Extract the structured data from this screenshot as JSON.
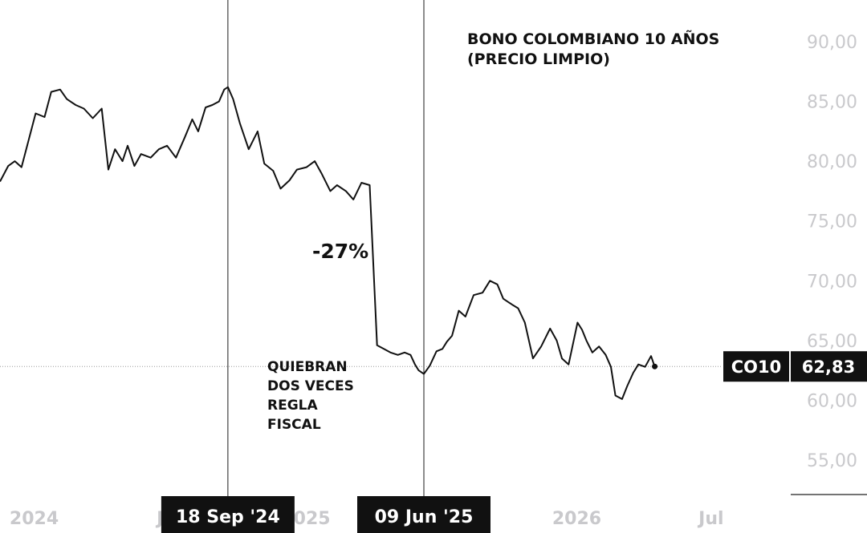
{
  "chart_data": {
    "type": "line",
    "title": "BONO COLOMBIANO 10 AÑOS",
    "subtitle": "(PRECIO LIMPIO)",
    "annotation_pct": "-27%",
    "annotation_note": [
      "QUIEBRAN",
      "DOS VECES",
      "REGLA",
      "FISCAL"
    ],
    "y_axis": {
      "position": "right",
      "ylim": [
        51.8,
        92.5
      ],
      "ticks": [
        55,
        60,
        65,
        70,
        75,
        80,
        85,
        90
      ],
      "tick_labels": [
        "55,00",
        "60,00",
        "65,00",
        "70,00",
        "75,00",
        "80,00",
        "85,00",
        "90,00"
      ]
    },
    "x_axis": {
      "labels": [
        {
          "text": "2024",
          "date": "2024-01-01"
        },
        {
          "text": "Jul",
          "date": "2024-07-01"
        },
        {
          "text": "2025",
          "date": "2025-01-01"
        },
        {
          "text": "Jul",
          "date": "2025-07-01"
        },
        {
          "text": "2026",
          "date": "2026-01-01"
        },
        {
          "text": "Jul",
          "date": "2026-07-01"
        }
      ]
    },
    "markers": [
      {
        "label": "18 Sep '24",
        "date": "2024-09-18"
      },
      {
        "label": "09 Jun '25",
        "date": "2025-06-09"
      }
    ],
    "last_value": {
      "ticker": "CO10",
      "value": 62.83,
      "label": "62,83"
    },
    "grid": false,
    "legend": "none",
    "series": [
      {
        "x": [
          "2023-11-16",
          "2023-11-27",
          "2023-12-06",
          "2023-12-15",
          "2024-01-03",
          "2024-01-15",
          "2024-01-24",
          "2024-02-05",
          "2024-02-14",
          "2024-02-26",
          "2024-03-08",
          "2024-03-20",
          "2024-04-01",
          "2024-04-10",
          "2024-04-19",
          "2024-04-29",
          "2024-05-06",
          "2024-05-15",
          "2024-05-24",
          "2024-06-06",
          "2024-06-17",
          "2024-06-28",
          "2024-07-10",
          "2024-07-22",
          "2024-08-01",
          "2024-08-09",
          "2024-08-19",
          "2024-08-28",
          "2024-09-06",
          "2024-09-13",
          "2024-09-18",
          "2024-09-25",
          "2024-10-04",
          "2024-10-16",
          "2024-10-28",
          "2024-11-06",
          "2024-11-18",
          "2024-11-28",
          "2024-12-10",
          "2024-12-20",
          "2025-01-02",
          "2025-01-13",
          "2025-01-22",
          "2025-02-03",
          "2025-02-12",
          "2025-02-24",
          "2025-03-06",
          "2025-03-17",
          "2025-03-28",
          "2025-04-07",
          "2025-04-16",
          "2025-04-25",
          "2025-05-05",
          "2025-05-14",
          "2025-05-22",
          "2025-05-28",
          "2025-06-02",
          "2025-06-09",
          "2025-06-17",
          "2025-06-26",
          "2025-07-04",
          "2025-07-10",
          "2025-07-17",
          "2025-07-26",
          "2025-08-04",
          "2025-08-15",
          "2025-08-27",
          "2025-09-06",
          "2025-09-16",
          "2025-09-24",
          "2025-10-06",
          "2025-10-14",
          "2025-10-23",
          "2025-11-03",
          "2025-11-14",
          "2025-11-26",
          "2025-12-05",
          "2025-12-12",
          "2025-12-21",
          "2026-01-02",
          "2026-01-08",
          "2026-01-14",
          "2026-01-22",
          "2026-01-31",
          "2026-02-09",
          "2026-02-16",
          "2026-02-22",
          "2026-03-03",
          "2026-03-10",
          "2026-03-18",
          "2026-03-25",
          "2026-04-03",
          "2026-04-11",
          "2026-04-16"
        ],
        "y": [
          78.3,
          79.6,
          80.0,
          79.5,
          84.0,
          83.7,
          85.8,
          86.0,
          85.2,
          84.7,
          84.4,
          83.6,
          84.4,
          79.3,
          81.0,
          80.0,
          81.3,
          79.6,
          80.6,
          80.3,
          81.0,
          81.3,
          80.3,
          82.0,
          83.5,
          82.5,
          84.5,
          84.7,
          85.0,
          86.0,
          86.2,
          85.2,
          83.2,
          81.0,
          82.5,
          79.8,
          79.2,
          77.7,
          78.4,
          79.3,
          79.5,
          80.0,
          79.0,
          77.5,
          78.0,
          77.5,
          76.8,
          78.2,
          78.0,
          64.6,
          64.3,
          64.0,
          63.8,
          64.0,
          63.8,
          63.0,
          62.5,
          62.2,
          62.9,
          64.1,
          64.3,
          64.9,
          65.4,
          67.5,
          67.0,
          68.8,
          69.0,
          70.0,
          69.7,
          68.5,
          68.0,
          67.7,
          66.5,
          63.5,
          64.5,
          66.0,
          65.0,
          63.5,
          63.0,
          66.5,
          65.9,
          65.0,
          64.0,
          64.5,
          63.8,
          62.8,
          60.4,
          60.1,
          61.2,
          62.3,
          63.0,
          62.8,
          63.7,
          62.8
        ]
      }
    ]
  }
}
